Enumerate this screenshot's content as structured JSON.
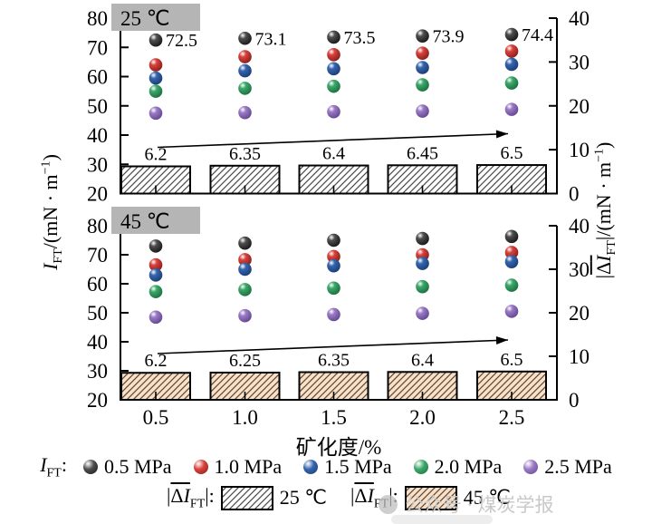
{
  "axes": {
    "x_label": "矿化度/%",
    "xticks": [
      "0.5",
      "1.0",
      "1.5",
      "2.0",
      "2.5"
    ],
    "left_label": {
      "main": "I",
      "sub": "FT",
      "pre": "/(mN · m",
      "sup": "−1",
      "post": ")"
    },
    "right_label": {
      "open": "|",
      "delta": "Δ",
      "main": "I",
      "sub": "FT",
      "close": "|",
      "pre": "/(mN · m",
      "sup": "−1",
      "post": ")"
    }
  },
  "colors": {
    "panel_label_bg": "#b5b5b5",
    "axis": "#000000",
    "watermark": "#c9c9c9"
  },
  "chart_data": [
    {
      "type": "scatter+bar",
      "panel_label": "25 ℃",
      "x": [
        0.5,
        1.0,
        1.5,
        2.0,
        2.5
      ],
      "ylim_left": [
        20,
        80
      ],
      "ylim_right": [
        0,
        40
      ],
      "yticks_left": [
        "80",
        "70",
        "60",
        "50",
        "40",
        "30",
        "20"
      ],
      "yticks_right": [
        "40",
        "30",
        "20",
        "10",
        "0"
      ],
      "trend_arrow": true,
      "series": [
        {
          "name": "0.5 MPa",
          "color": "#4f4f4f",
          "dark": "#161616",
          "values": [
            72.5,
            73.1,
            73.5,
            73.9,
            74.4
          ],
          "point_labels": [
            "72.5",
            "73.1",
            "73.5",
            "73.9",
            "74.4"
          ]
        },
        {
          "name": "1.0 MPa",
          "color": "#d8423c",
          "dark": "#8a1d19",
          "values": [
            64.0,
            66.8,
            67.5,
            68.0,
            68.7
          ]
        },
        {
          "name": "1.5 MPa",
          "color": "#3565ae",
          "dark": "#1b3c74",
          "values": [
            59.5,
            62.0,
            62.7,
            63.1,
            64.2
          ]
        },
        {
          "name": "2.0 MPa",
          "color": "#3ca86b",
          "dark": "#1a6e3e",
          "values": [
            55.0,
            56.0,
            56.7,
            57.2,
            57.8
          ]
        },
        {
          "name": "2.5 MPa",
          "color": "#9a7ac5",
          "dark": "#63468f",
          "values": [
            47.5,
            47.7,
            48.0,
            48.2,
            48.8
          ]
        }
      ],
      "bars": {
        "name": "|ΔIFT| 25 ℃",
        "values": [
          6.2,
          6.35,
          6.4,
          6.45,
          6.5
        ],
        "labels": [
          "6.2",
          "6.35",
          "6.4",
          "6.45",
          "6.5"
        ],
        "fill": "#ffffff",
        "hatch": "#4a4a4a"
      }
    },
    {
      "type": "scatter+bar",
      "panel_label": "45 ℃",
      "x": [
        0.5,
        1.0,
        1.5,
        2.0,
        2.5
      ],
      "ylim_left": [
        20,
        80
      ],
      "ylim_right": [
        0,
        40
      ],
      "yticks_left": [
        "80",
        "70",
        "60",
        "50",
        "40",
        "30",
        "20"
      ],
      "yticks_right": [
        "40",
        "30",
        "20",
        "10",
        "0"
      ],
      "trend_arrow": true,
      "series": [
        {
          "name": "0.5 MPa",
          "color": "#4f4f4f",
          "dark": "#161616",
          "values": [
            73.0,
            74.0,
            75.0,
            75.6,
            76.3
          ]
        },
        {
          "name": "1.0 MPa",
          "color": "#d8423c",
          "dark": "#8a1d19",
          "values": [
            66.5,
            68.3,
            69.4,
            70.0,
            70.8
          ]
        },
        {
          "name": "1.5 MPa",
          "color": "#3565ae",
          "dark": "#1b3c74",
          "values": [
            63.0,
            65.0,
            66.2,
            67.0,
            67.6
          ]
        },
        {
          "name": "2.0 MPa",
          "color": "#3ca86b",
          "dark": "#1a6e3e",
          "values": [
            57.3,
            58.0,
            58.5,
            59.0,
            59.5
          ]
        },
        {
          "name": "2.5 MPa",
          "color": "#9a7ac5",
          "dark": "#63468f",
          "values": [
            48.5,
            49.0,
            49.4,
            49.8,
            50.5
          ]
        }
      ],
      "bars": {
        "name": "|ΔIFT| 45 ℃",
        "values": [
          6.2,
          6.25,
          6.35,
          6.4,
          6.5
        ],
        "labels": [
          "6.2",
          "6.25",
          "6.35",
          "6.4",
          "6.5"
        ],
        "fill": "#f8e1c8",
        "hatch": "#5b4634"
      }
    }
  ],
  "legend": {
    "prefix": {
      "main": "I",
      "sub": "FT",
      "colon": ":"
    },
    "pressures": [
      {
        "label": "0.5 MPa",
        "color": "#4f4f4f",
        "dark": "#161616"
      },
      {
        "label": "1.0 MPa",
        "color": "#d8423c",
        "dark": "#8a1d19"
      },
      {
        "label": "1.5 MPa",
        "color": "#3565ae",
        "dark": "#1b3c74"
      },
      {
        "label": "2.0 MPa",
        "color": "#3ca86b",
        "dark": "#1a6e3e"
      },
      {
        "label": "2.5 MPa",
        "color": "#9a7ac5",
        "dark": "#63468f"
      }
    ],
    "bars": [
      {
        "formula": {
          "open": "|",
          "delta": "Δ",
          "main": "I",
          "sub": "FT",
          "close": "|:"
        },
        "label": "25 ℃",
        "fill": "#ffffff",
        "hatch": "#4a4a4a"
      },
      {
        "formula": {
          "open": "|",
          "delta": "Δ",
          "main": "I",
          "sub": "FT",
          "close": "|:"
        },
        "label": "45 ℃",
        "fill": "#f8e1c8",
        "hatch": "#5b4634"
      }
    ]
  },
  "watermark": {
    "text": "公众号 · 煤炭学报"
  }
}
